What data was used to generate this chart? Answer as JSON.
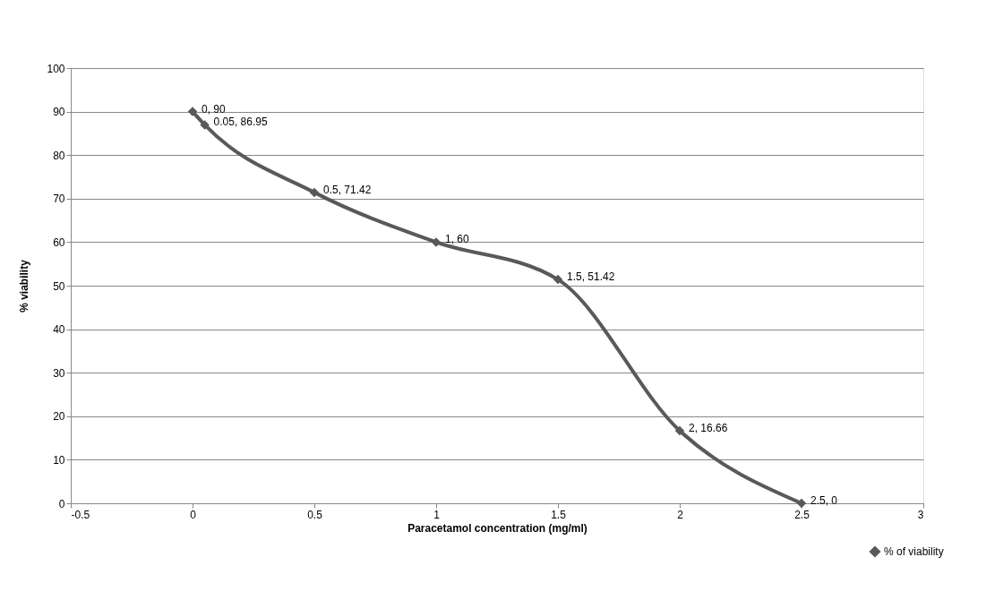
{
  "chart_data": {
    "type": "line",
    "xlabel": "Paracetamol concentration (mg/ml)",
    "ylabel": "% viability",
    "x": [
      0,
      0.05,
      0.5,
      1,
      1.5,
      2,
      2.5
    ],
    "series": [
      {
        "name": "% of viability",
        "color": "#595959",
        "values": [
          90,
          86.95,
          71.42,
          60,
          51.42,
          16.66,
          0
        ],
        "value_labels": [
          "0, 90",
          "0.05, 86.95",
          "0.5, 71.42",
          "1, 60",
          "1.5, 51.42",
          "2, 16.66",
          "2.5, 0"
        ]
      }
    ],
    "xlim": [
      -0.5,
      3
    ],
    "xticks": [
      -0.5,
      0,
      0.5,
      1,
      1.5,
      2,
      2.5,
      3
    ],
    "ylim": [
      0,
      100
    ],
    "yticks": [
      0,
      10,
      20,
      30,
      40,
      50,
      60,
      70,
      80,
      90,
      100
    ],
    "grid": "y",
    "legend": "bottom right",
    "marker": "diamond",
    "line_style": "solid"
  }
}
